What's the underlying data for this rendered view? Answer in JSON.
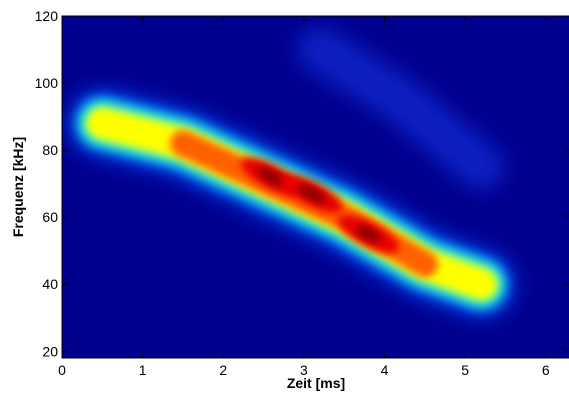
{
  "chart_data": {
    "type": "heatmap",
    "title": "",
    "xlabel": "Zeit [ms]",
    "ylabel": "Frequenz [kHz]",
    "xlim": [
      0,
      6.3
    ],
    "ylim": [
      18,
      120
    ],
    "xticks": [
      0,
      1,
      2,
      3,
      4,
      5,
      6
    ],
    "yticks": [
      20,
      40,
      60,
      80,
      100,
      120
    ],
    "colormap": "jet",
    "grid": false,
    "legend": "none",
    "background_color": "#00008f",
    "components": [
      {
        "name": "main chirp",
        "path": [
          [
            0.5,
            88
          ],
          [
            1.5,
            82
          ],
          [
            2.5,
            71
          ],
          [
            3.5,
            60
          ],
          [
            4.5,
            46
          ],
          [
            5.2,
            40
          ]
        ]
      },
      {
        "name": "harmonic",
        "path": [
          [
            3.2,
            110
          ],
          [
            4.2,
            95
          ],
          [
            5.2,
            75
          ]
        ]
      }
    ],
    "peaks": [
      {
        "x": 2.6,
        "y": 72,
        "level": 1.0
      },
      {
        "x": 3.1,
        "y": 67,
        "level": 0.97
      },
      {
        "x": 3.8,
        "y": 55,
        "level": 0.85
      }
    ]
  }
}
